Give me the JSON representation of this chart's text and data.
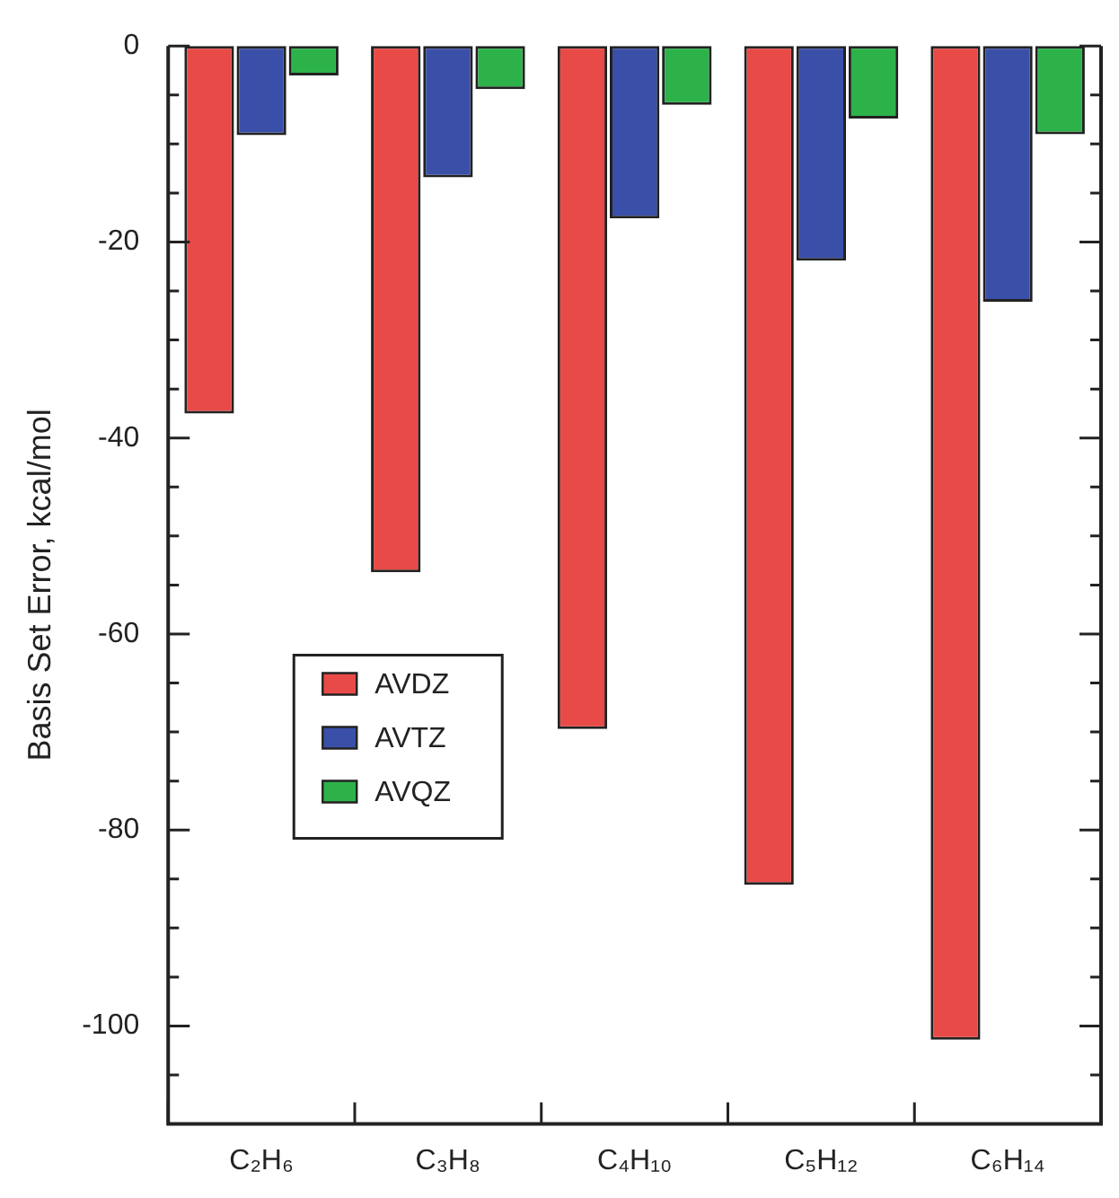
{
  "chart_data": {
    "type": "bar",
    "ylabel": "Basis Set Error, kcal/mol",
    "categories": [
      "C₂H₆",
      "C₃H₈",
      "C₄H₁₀",
      "C₅H₁₂",
      "C₆H₁₄"
    ],
    "series": [
      {
        "name": "AVDZ",
        "color": "#e84a47",
        "values": [
          -37.5,
          -53.7,
          -69.7,
          -85.6,
          -101.4
        ]
      },
      {
        "name": "AVTZ",
        "color": "#3a4fa8",
        "values": [
          -9.1,
          -13.4,
          -17.6,
          -21.9,
          -26.1
        ]
      },
      {
        "name": "AVQZ",
        "color": "#2db24a",
        "values": [
          -3.0,
          -4.4,
          -6.0,
          -7.4,
          -9.0
        ]
      }
    ],
    "ylim": [
      -110,
      0
    ],
    "yticks": [
      0,
      {
        "value": -5,
        "label": null
      },
      {
        "value": -10,
        "label": null
      },
      {
        "value": -15,
        "label": null
      },
      -20,
      {
        "value": -25,
        "label": null
      },
      {
        "value": -30,
        "label": null
      },
      {
        "value": -35,
        "label": null
      },
      -40,
      {
        "value": -45,
        "label": null
      },
      {
        "value": -50,
        "label": null
      },
      {
        "value": -55,
        "label": null
      },
      -60,
      {
        "value": -65,
        "label": null
      },
      {
        "value": -70,
        "label": null
      },
      {
        "value": -75,
        "label": null
      },
      -80,
      {
        "value": -85,
        "label": null
      },
      {
        "value": -90,
        "label": null
      },
      {
        "value": -95,
        "label": null
      },
      -100,
      {
        "value": -105,
        "label": null
      }
    ],
    "legend": "left"
  }
}
